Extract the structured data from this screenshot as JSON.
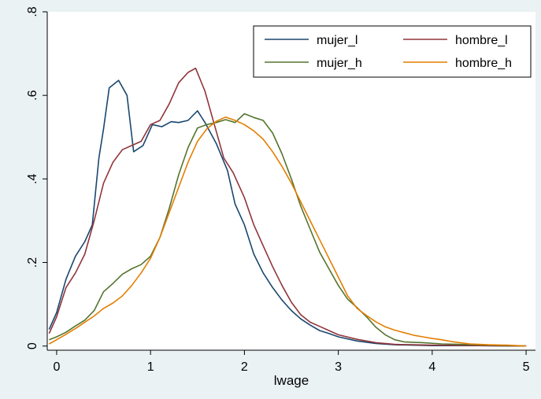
{
  "chart_data": {
    "type": "line",
    "title": "",
    "xlabel": "lwage",
    "ylabel": "",
    "xlim": [
      -0.1,
      5.1
    ],
    "ylim": [
      -0.01,
      0.8
    ],
    "xticks": [
      0,
      1,
      2,
      3,
      4,
      5
    ],
    "xtick_labels": [
      "0",
      "1",
      "2",
      "3",
      "4",
      "5"
    ],
    "yticks": [
      0,
      0.2,
      0.4,
      0.6,
      0.8
    ],
    "ytick_labels": [
      "0",
      ".2",
      ".4",
      ".6",
      ".8"
    ],
    "grid": false,
    "legend_position": "top-right",
    "background_color": "#eaf2f3",
    "plot_background": "#ffffff",
    "series": [
      {
        "name": "mujer_l",
        "color": "#1a476f",
        "points": [
          [
            -0.08,
            0.04
          ],
          [
            0,
            0.08
          ],
          [
            0.1,
            0.16
          ],
          [
            0.2,
            0.215
          ],
          [
            0.3,
            0.25
          ],
          [
            0.38,
            0.29
          ],
          [
            0.45,
            0.45
          ],
          [
            0.5,
            0.52
          ],
          [
            0.56,
            0.618
          ],
          [
            0.66,
            0.636
          ],
          [
            0.75,
            0.6
          ],
          [
            0.82,
            0.465
          ],
          [
            0.92,
            0.48
          ],
          [
            1.02,
            0.53
          ],
          [
            1.12,
            0.525
          ],
          [
            1.22,
            0.537
          ],
          [
            1.3,
            0.535
          ],
          [
            1.4,
            0.54
          ],
          [
            1.5,
            0.563
          ],
          [
            1.58,
            0.535
          ],
          [
            1.7,
            0.485
          ],
          [
            1.82,
            0.42
          ],
          [
            1.9,
            0.34
          ],
          [
            2.0,
            0.29
          ],
          [
            2.1,
            0.22
          ],
          [
            2.2,
            0.175
          ],
          [
            2.3,
            0.14
          ],
          [
            2.4,
            0.11
          ],
          [
            2.5,
            0.085
          ],
          [
            2.6,
            0.065
          ],
          [
            2.7,
            0.05
          ],
          [
            2.8,
            0.037
          ],
          [
            2.9,
            0.03
          ],
          [
            3.0,
            0.022
          ],
          [
            3.2,
            0.012
          ],
          [
            3.4,
            0.006
          ],
          [
            3.6,
            0.003
          ],
          [
            3.8,
            0.002
          ],
          [
            4.0,
            0.001
          ],
          [
            4.5,
            0.001
          ],
          [
            5.0,
            0.0
          ]
        ]
      },
      {
        "name": "hombre_l",
        "color": "#90353b",
        "points": [
          [
            -0.08,
            0.03
          ],
          [
            0,
            0.07
          ],
          [
            0.1,
            0.14
          ],
          [
            0.2,
            0.175
          ],
          [
            0.3,
            0.22
          ],
          [
            0.4,
            0.3
          ],
          [
            0.5,
            0.39
          ],
          [
            0.6,
            0.44
          ],
          [
            0.7,
            0.47
          ],
          [
            0.8,
            0.48
          ],
          [
            0.9,
            0.49
          ],
          [
            1.0,
            0.53
          ],
          [
            1.1,
            0.54
          ],
          [
            1.2,
            0.58
          ],
          [
            1.3,
            0.63
          ],
          [
            1.4,
            0.655
          ],
          [
            1.48,
            0.665
          ],
          [
            1.58,
            0.61
          ],
          [
            1.68,
            0.53
          ],
          [
            1.78,
            0.45
          ],
          [
            1.88,
            0.415
          ],
          [
            2.0,
            0.355
          ],
          [
            2.1,
            0.29
          ],
          [
            2.2,
            0.24
          ],
          [
            2.3,
            0.19
          ],
          [
            2.4,
            0.145
          ],
          [
            2.5,
            0.105
          ],
          [
            2.6,
            0.075
          ],
          [
            2.7,
            0.057
          ],
          [
            2.8,
            0.047
          ],
          [
            2.9,
            0.037
          ],
          [
            3.0,
            0.027
          ],
          [
            3.2,
            0.016
          ],
          [
            3.4,
            0.008
          ],
          [
            3.6,
            0.004
          ],
          [
            3.8,
            0.003
          ],
          [
            4.0,
            0.002
          ],
          [
            4.5,
            0.001
          ],
          [
            5.0,
            0.0
          ]
        ]
      },
      {
        "name": "mujer_h",
        "color": "#55752f",
        "points": [
          [
            -0.08,
            0.015
          ],
          [
            0,
            0.022
          ],
          [
            0.1,
            0.033
          ],
          [
            0.2,
            0.048
          ],
          [
            0.3,
            0.062
          ],
          [
            0.4,
            0.085
          ],
          [
            0.5,
            0.13
          ],
          [
            0.6,
            0.15
          ],
          [
            0.7,
            0.172
          ],
          [
            0.8,
            0.185
          ],
          [
            0.9,
            0.195
          ],
          [
            1.0,
            0.215
          ],
          [
            1.1,
            0.26
          ],
          [
            1.2,
            0.33
          ],
          [
            1.3,
            0.41
          ],
          [
            1.4,
            0.475
          ],
          [
            1.5,
            0.522
          ],
          [
            1.6,
            0.53
          ],
          [
            1.7,
            0.535
          ],
          [
            1.8,
            0.542
          ],
          [
            1.9,
            0.535
          ],
          [
            2.0,
            0.556
          ],
          [
            2.1,
            0.547
          ],
          [
            2.2,
            0.54
          ],
          [
            2.3,
            0.51
          ],
          [
            2.4,
            0.46
          ],
          [
            2.5,
            0.4
          ],
          [
            2.6,
            0.335
          ],
          [
            2.7,
            0.28
          ],
          [
            2.8,
            0.225
          ],
          [
            2.9,
            0.185
          ],
          [
            3.0,
            0.145
          ],
          [
            3.1,
            0.112
          ],
          [
            3.2,
            0.092
          ],
          [
            3.3,
            0.07
          ],
          [
            3.4,
            0.045
          ],
          [
            3.5,
            0.027
          ],
          [
            3.6,
            0.015
          ],
          [
            3.7,
            0.01
          ],
          [
            3.9,
            0.008
          ],
          [
            4.1,
            0.005
          ],
          [
            4.3,
            0.004
          ],
          [
            4.6,
            0.002
          ],
          [
            5.0,
            0.0
          ]
        ]
      },
      {
        "name": "hombre_h",
        "color": "#e37e00",
        "points": [
          [
            -0.08,
            0.005
          ],
          [
            0,
            0.015
          ],
          [
            0.1,
            0.028
          ],
          [
            0.2,
            0.042
          ],
          [
            0.3,
            0.057
          ],
          [
            0.4,
            0.072
          ],
          [
            0.5,
            0.09
          ],
          [
            0.6,
            0.103
          ],
          [
            0.7,
            0.12
          ],
          [
            0.8,
            0.145
          ],
          [
            0.9,
            0.175
          ],
          [
            1.0,
            0.21
          ],
          [
            1.1,
            0.26
          ],
          [
            1.2,
            0.32
          ],
          [
            1.3,
            0.38
          ],
          [
            1.4,
            0.44
          ],
          [
            1.5,
            0.49
          ],
          [
            1.6,
            0.52
          ],
          [
            1.7,
            0.538
          ],
          [
            1.8,
            0.548
          ],
          [
            1.9,
            0.54
          ],
          [
            2.0,
            0.53
          ],
          [
            2.1,
            0.515
          ],
          [
            2.2,
            0.495
          ],
          [
            2.3,
            0.465
          ],
          [
            2.4,
            0.43
          ],
          [
            2.5,
            0.39
          ],
          [
            2.6,
            0.345
          ],
          [
            2.7,
            0.3
          ],
          [
            2.8,
            0.255
          ],
          [
            2.9,
            0.21
          ],
          [
            3.0,
            0.165
          ],
          [
            3.1,
            0.12
          ],
          [
            3.2,
            0.09
          ],
          [
            3.3,
            0.073
          ],
          [
            3.4,
            0.058
          ],
          [
            3.5,
            0.046
          ],
          [
            3.6,
            0.038
          ],
          [
            3.7,
            0.032
          ],
          [
            3.8,
            0.026
          ],
          [
            3.9,
            0.022
          ],
          [
            4.0,
            0.018
          ],
          [
            4.1,
            0.015
          ],
          [
            4.2,
            0.011
          ],
          [
            4.4,
            0.005
          ],
          [
            4.6,
            0.003
          ],
          [
            4.8,
            0.002
          ],
          [
            5.0,
            0.0
          ]
        ]
      }
    ]
  }
}
